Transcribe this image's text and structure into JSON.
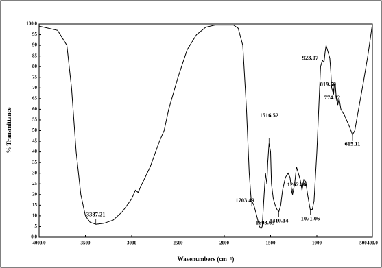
{
  "chart_data": {
    "type": "line",
    "xlabel": "Wavenumbers (cm⁻¹)",
    "ylabel": "% Transmittance",
    "xlim": [
      4000,
      400
    ],
    "ylim": [
      0,
      100
    ],
    "xticks": [
      {
        "value": 4000,
        "label": "4000.0"
      },
      3500,
      3000,
      2500,
      2000,
      1500,
      1000,
      500,
      {
        "value": 400,
        "label": "400.0"
      }
    ],
    "yticks": [
      {
        "value": 0,
        "label": "0.0"
      },
      5,
      10,
      15,
      20,
      25,
      30,
      35,
      40,
      45,
      50,
      55,
      60,
      65,
      70,
      75,
      80,
      85,
      90,
      95,
      {
        "value": 100,
        "label": "100.0"
      }
    ],
    "color": "#000000",
    "x": [
      4000,
      3800,
      3700,
      3650,
      3600,
      3550,
      3500,
      3450,
      3387,
      3300,
      3200,
      3100,
      3000,
      2960,
      2930,
      2900,
      2800,
      2700,
      2650,
      2600,
      2500,
      2400,
      2300,
      2200,
      2100,
      2000,
      1900,
      1850,
      1800,
      1760,
      1730,
      1710,
      1703,
      1680,
      1650,
      1620,
      1603,
      1590,
      1570,
      1555,
      1540,
      1530,
      1516,
      1500,
      1490,
      1470,
      1450,
      1430,
      1410,
      1390,
      1370,
      1340,
      1310,
      1290,
      1270,
      1262,
      1240,
      1220,
      1200,
      1180,
      1160,
      1140,
      1120,
      1100,
      1080,
      1071,
      1050,
      1030,
      1000,
      980,
      960,
      940,
      923,
      910,
      900,
      880,
      860,
      850,
      840,
      819,
      810,
      800,
      790,
      774,
      760,
      740,
      700,
      650,
      615,
      590,
      550,
      500,
      450,
      400
    ],
    "y": [
      99,
      97,
      90,
      70,
      40,
      20,
      10,
      7,
      6,
      6.5,
      8,
      12,
      18,
      22,
      21,
      24,
      33,
      45,
      50,
      60,
      75,
      88,
      95,
      98.5,
      99.5,
      99.5,
      99.5,
      98,
      90,
      60,
      30,
      18,
      17,
      15,
      10,
      5,
      4,
      5,
      20,
      30,
      25,
      35,
      44,
      40,
      25,
      18,
      15,
      13,
      12,
      15,
      22,
      28,
      30,
      28,
      21,
      20,
      25,
      33,
      30,
      27,
      22,
      27,
      26,
      20,
      15,
      13,
      13,
      17,
      40,
      60,
      80,
      83,
      82,
      87,
      90,
      87,
      84,
      78,
      70,
      67,
      72,
      71,
      65,
      62,
      65,
      60,
      57,
      52,
      48,
      50,
      60,
      72,
      85,
      100
    ],
    "peaks": [
      {
        "x": 3387.21,
        "y": 6
      },
      {
        "x": 1703.49,
        "y": 17
      },
      {
        "x": 1603.63,
        "y": 4
      },
      {
        "x": 1516.52,
        "y": 44
      },
      {
        "x": 1410.14,
        "y": 12
      },
      {
        "x": 1262.46,
        "y": 20
      },
      {
        "x": 1071.06,
        "y": 13
      },
      {
        "x": 923.07,
        "y": 82
      },
      {
        "x": 819.58,
        "y": 67
      },
      {
        "x": 774.82,
        "y": 62
      },
      {
        "x": 615.11,
        "y": 48
      }
    ]
  }
}
